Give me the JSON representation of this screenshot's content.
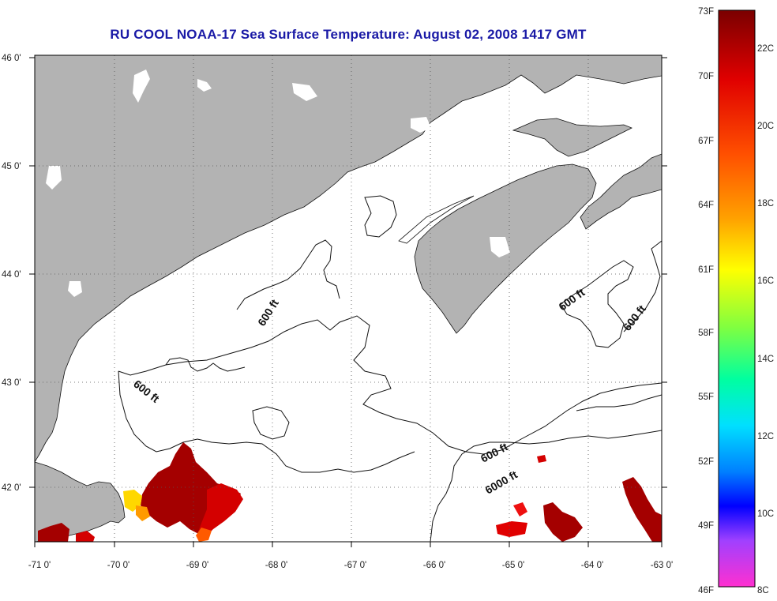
{
  "map": {
    "title": "RU COOL  NOAA-17  Sea Surface Temperature:  August 02, 2008 1417 GMT",
    "lat_ticks": [
      "46 0'",
      "45 0'",
      "44 0'",
      "43 0'",
      "42 0'"
    ],
    "lon_ticks": [
      "-71 0'",
      "-70 0'",
      "-69 0'",
      "-68 0'",
      "-67 0'",
      "-66 0'",
      "-65 0'",
      "-64 0'",
      "-63 0'"
    ],
    "contour_labels": [
      "600 ft",
      "600 ft",
      "600 ft",
      "600 ft",
      "600 ft",
      "6000 ft"
    ],
    "colors": {
      "land": "#b3b3b3",
      "water": "#ffffff",
      "title": "#1a1aa6"
    }
  },
  "colorbar": {
    "fahrenheit": [
      "73F",
      "70F",
      "67F",
      "64F",
      "61F",
      "58F",
      "55F",
      "52F",
      "49F",
      "46F"
    ],
    "celsius": [
      "22C",
      "20C",
      "18C",
      "16C",
      "14C",
      "12C",
      "10C",
      "8C"
    ]
  }
}
